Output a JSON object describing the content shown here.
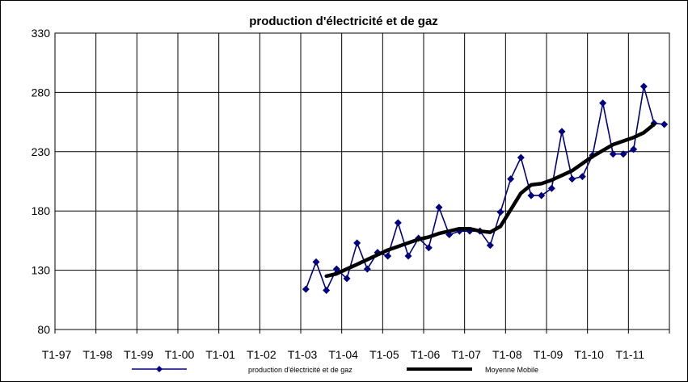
{
  "chart_data": {
    "type": "line",
    "title": "production d'électricité et de gaz",
    "xlabel": "",
    "ylabel": "",
    "ylim": [
      80,
      330
    ],
    "yticks": [
      80,
      130,
      180,
      230,
      280,
      330
    ],
    "grid": true,
    "legend_position": "bottom",
    "x_tick_labels": [
      "T1-97",
      "T1-98",
      "T1-99",
      "T1-00",
      "T1-01",
      "T1-02",
      "T1-03",
      "T1-04",
      "T1-05",
      "T1-06",
      "T1-07",
      "T1-08",
      "T1-09",
      "T1-10",
      "T1-11"
    ],
    "x_start_quarter": "T1-97",
    "series": [
      {
        "name": "production d'électricité et de gaz",
        "color": "#000080",
        "marker": "diamond",
        "start_quarter": "T1-03",
        "values": [
          114,
          137,
          113,
          131,
          123,
          153,
          131,
          145,
          142,
          170,
          142,
          157,
          149,
          183,
          160,
          163,
          163,
          163,
          151,
          179,
          207,
          225,
          193,
          193,
          199,
          247,
          207,
          209,
          227,
          271,
          228,
          228,
          232,
          285,
          254,
          253
        ]
      },
      {
        "name": "Moyenne Mobile",
        "color": "#000000",
        "marker": "none",
        "start_quarter": "T3-03",
        "values": [
          125,
          127,
          131,
          135,
          139,
          143,
          147,
          150,
          153,
          156,
          158,
          161,
          163,
          165,
          165,
          163,
          162,
          167,
          181,
          195,
          202,
          203,
          206,
          210,
          214,
          220,
          226,
          231,
          236,
          239,
          242,
          246,
          253
        ]
      }
    ]
  }
}
